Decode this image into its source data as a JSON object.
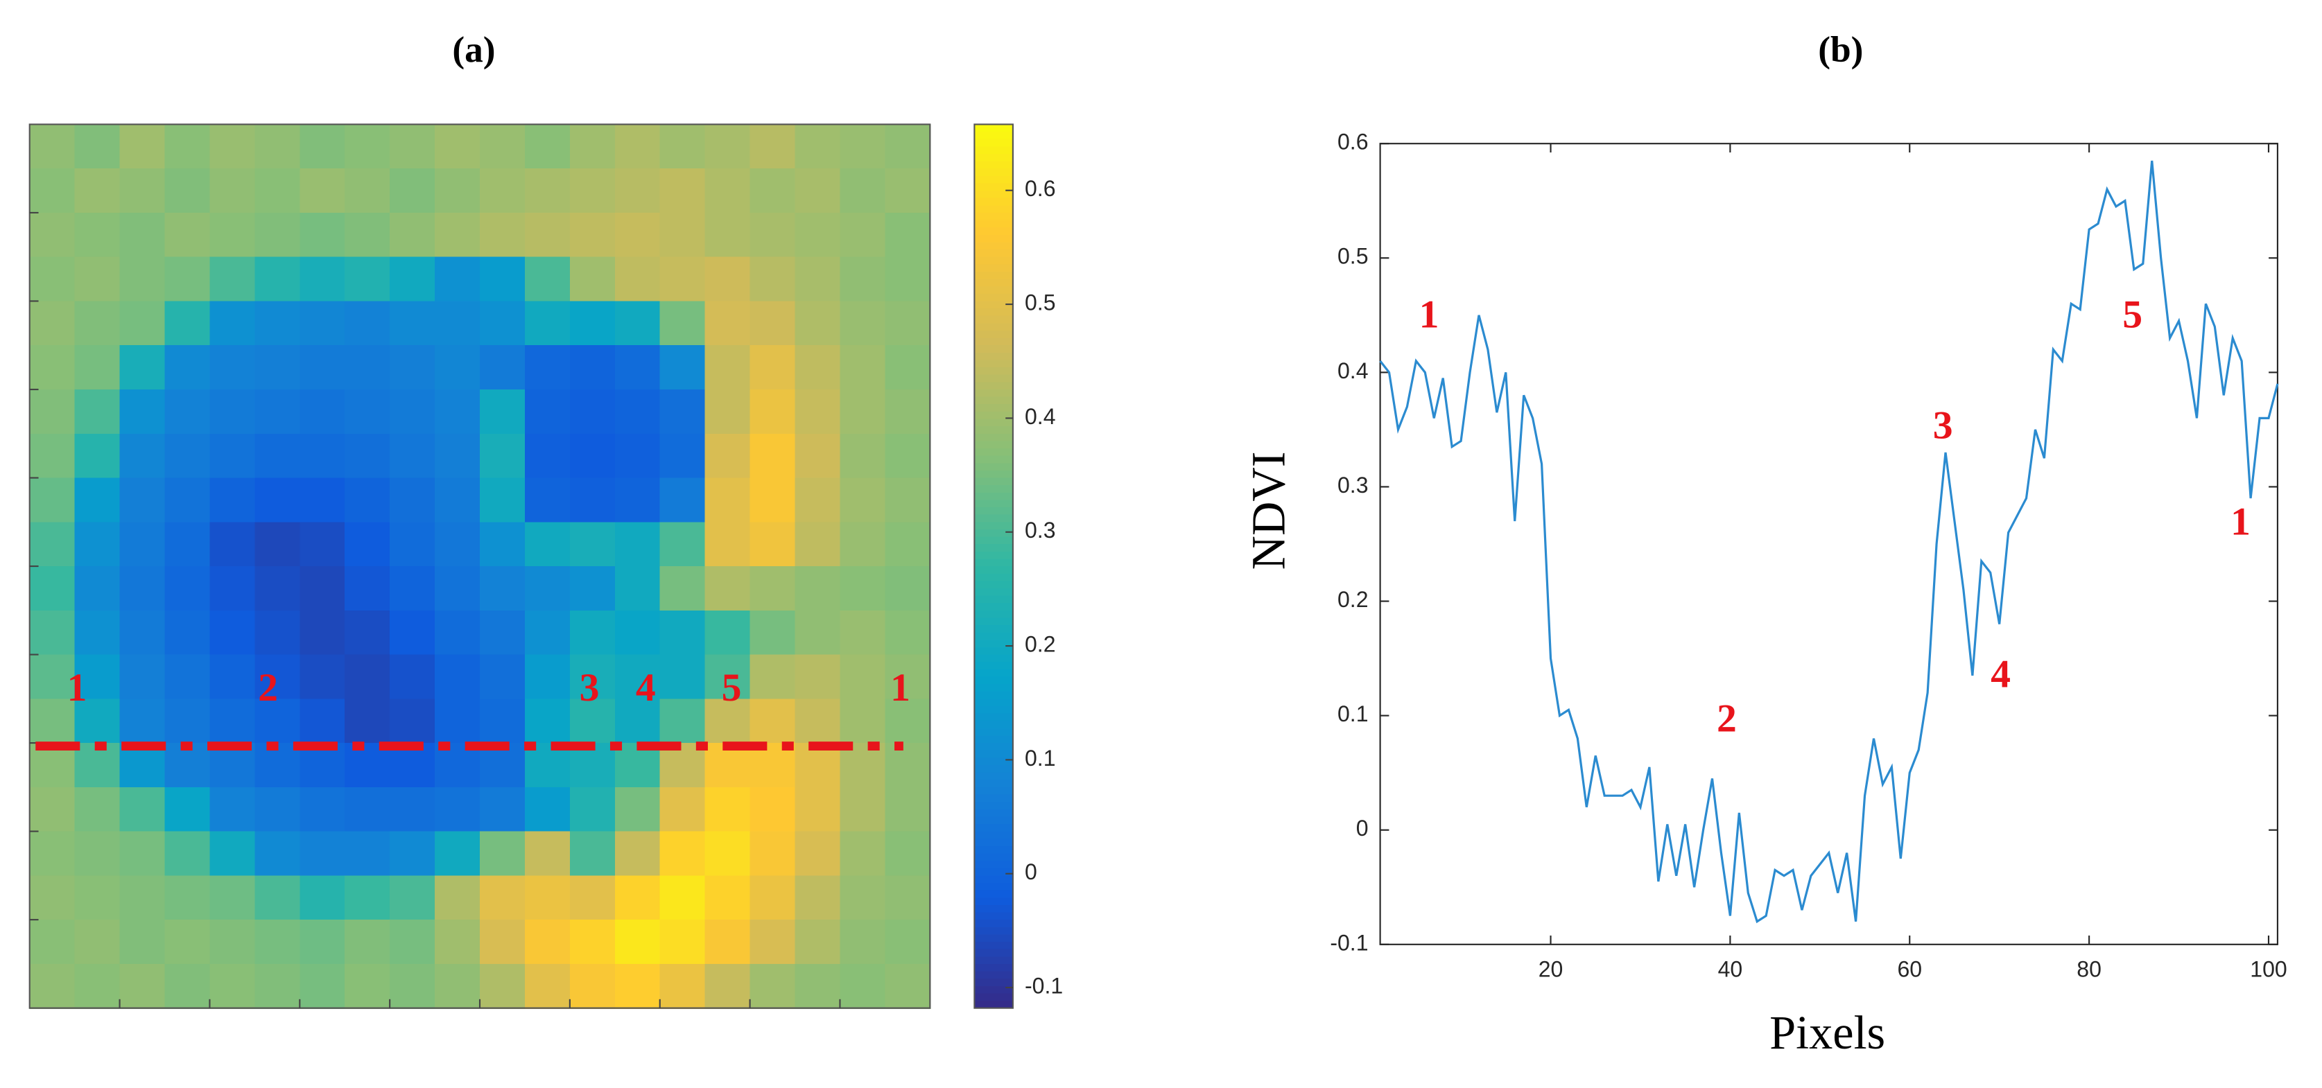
{
  "chart_data": [
    {
      "type": "heatmap",
      "title": "(a)",
      "colormap": "parula",
      "clim": [
        -0.118,
        0.658
      ],
      "cticks": [
        -0.1,
        0,
        0.1,
        0.2,
        0.3,
        0.4,
        0.5,
        0.6
      ],
      "annotations": [
        "1",
        "2",
        "3",
        "4",
        "5",
        "1"
      ],
      "z": [
        [
          0.38,
          0.36,
          0.4,
          0.37,
          0.39,
          0.38,
          0.36,
          0.37,
          0.38,
          0.4,
          0.39,
          0.37,
          0.4,
          0.42,
          0.4,
          0.41,
          0.43,
          0.4,
          0.39,
          0.38
        ],
        [
          0.37,
          0.39,
          0.38,
          0.36,
          0.38,
          0.37,
          0.39,
          0.38,
          0.36,
          0.38,
          0.4,
          0.41,
          0.42,
          0.43,
          0.44,
          0.42,
          0.4,
          0.41,
          0.38,
          0.39
        ],
        [
          0.38,
          0.37,
          0.36,
          0.38,
          0.37,
          0.36,
          0.35,
          0.36,
          0.38,
          0.4,
          0.42,
          0.43,
          0.44,
          0.45,
          0.44,
          0.42,
          0.41,
          0.4,
          0.39,
          0.37
        ],
        [
          0.37,
          0.38,
          0.36,
          0.35,
          0.3,
          0.25,
          0.22,
          0.24,
          0.2,
          0.12,
          0.15,
          0.3,
          0.4,
          0.44,
          0.45,
          0.46,
          0.43,
          0.41,
          0.38,
          0.37
        ],
        [
          0.38,
          0.36,
          0.35,
          0.25,
          0.12,
          0.1,
          0.09,
          0.08,
          0.1,
          0.1,
          0.12,
          0.2,
          0.18,
          0.2,
          0.35,
          0.47,
          0.46,
          0.42,
          0.39,
          0.38
        ],
        [
          0.37,
          0.35,
          0.22,
          0.1,
          0.08,
          0.07,
          0.06,
          0.06,
          0.07,
          0.09,
          0.06,
          0.01,
          0.0,
          0.02,
          0.1,
          0.45,
          0.5,
          0.44,
          0.4,
          0.37
        ],
        [
          0.36,
          0.3,
          0.12,
          0.08,
          0.06,
          0.05,
          0.04,
          0.05,
          0.06,
          0.08,
          0.2,
          0.0,
          -0.01,
          0.0,
          0.03,
          0.45,
          0.52,
          0.45,
          0.4,
          0.38
        ],
        [
          0.35,
          0.25,
          0.09,
          0.06,
          0.04,
          0.02,
          0.02,
          0.03,
          0.05,
          0.07,
          0.22,
          -0.01,
          -0.02,
          -0.01,
          0.02,
          0.48,
          0.55,
          0.46,
          0.39,
          0.37
        ],
        [
          0.33,
          0.15,
          0.07,
          0.04,
          0.0,
          -0.02,
          -0.02,
          0.0,
          0.03,
          0.06,
          0.2,
          0.0,
          -0.01,
          0.0,
          0.06,
          0.5,
          0.55,
          0.45,
          0.4,
          0.38
        ],
        [
          0.3,
          0.12,
          0.06,
          0.02,
          -0.04,
          -0.06,
          -0.05,
          -0.02,
          0.02,
          0.05,
          0.12,
          0.2,
          0.22,
          0.2,
          0.3,
          0.5,
          0.53,
          0.44,
          0.39,
          0.37
        ],
        [
          0.28,
          0.1,
          0.05,
          0.01,
          -0.03,
          -0.05,
          -0.06,
          -0.03,
          0.0,
          0.04,
          0.08,
          0.1,
          0.12,
          0.2,
          0.35,
          0.42,
          0.4,
          0.38,
          0.37,
          0.36
        ],
        [
          0.3,
          0.12,
          0.06,
          0.02,
          -0.02,
          -0.04,
          -0.06,
          -0.05,
          -0.02,
          0.02,
          0.05,
          0.12,
          0.2,
          0.18,
          0.2,
          0.28,
          0.35,
          0.38,
          0.39,
          0.37
        ],
        [
          0.32,
          0.15,
          0.07,
          0.04,
          0.0,
          -0.03,
          -0.05,
          -0.06,
          -0.04,
          0.0,
          0.03,
          0.15,
          0.22,
          0.2,
          0.2,
          0.3,
          0.42,
          0.43,
          0.4,
          0.38
        ],
        [
          0.35,
          0.2,
          0.08,
          0.05,
          0.02,
          0.0,
          -0.03,
          -0.06,
          -0.05,
          0.0,
          0.02,
          0.18,
          0.25,
          0.2,
          0.3,
          0.45,
          0.5,
          0.45,
          0.4,
          0.37
        ],
        [
          0.37,
          0.3,
          0.14,
          0.07,
          0.05,
          0.02,
          0.0,
          -0.02,
          -0.02,
          0.01,
          0.03,
          0.2,
          0.22,
          0.28,
          0.45,
          0.55,
          0.55,
          0.5,
          0.42,
          0.38
        ],
        [
          0.38,
          0.35,
          0.3,
          0.18,
          0.08,
          0.06,
          0.04,
          0.03,
          0.03,
          0.04,
          0.06,
          0.15,
          0.24,
          0.35,
          0.5,
          0.58,
          0.56,
          0.5,
          0.42,
          0.38
        ],
        [
          0.37,
          0.36,
          0.35,
          0.3,
          0.2,
          0.1,
          0.08,
          0.08,
          0.1,
          0.2,
          0.35,
          0.45,
          0.3,
          0.45,
          0.58,
          0.6,
          0.55,
          0.48,
          0.4,
          0.37
        ],
        [
          0.38,
          0.37,
          0.36,
          0.35,
          0.34,
          0.3,
          0.25,
          0.28,
          0.3,
          0.42,
          0.5,
          0.52,
          0.5,
          0.58,
          0.62,
          0.58,
          0.52,
          0.44,
          0.39,
          0.38
        ],
        [
          0.37,
          0.38,
          0.36,
          0.37,
          0.36,
          0.35,
          0.34,
          0.36,
          0.35,
          0.4,
          0.48,
          0.55,
          0.58,
          0.62,
          0.6,
          0.55,
          0.48,
          0.42,
          0.38,
          0.37
        ],
        [
          0.38,
          0.37,
          0.38,
          0.36,
          0.37,
          0.36,
          0.35,
          0.37,
          0.36,
          0.38,
          0.42,
          0.5,
          0.55,
          0.57,
          0.52,
          0.45,
          0.4,
          0.38,
          0.37,
          0.38
        ]
      ]
    },
    {
      "type": "line",
      "title": "(b)",
      "xlabel": "Pixels",
      "ylabel": "NDVI",
      "color": "#2b8bd0",
      "xlim": [
        1,
        101
      ],
      "ylim": [
        -0.1,
        0.6
      ],
      "xticks": [
        20,
        40,
        60,
        80,
        100
      ],
      "yticks": [
        -0.1,
        0,
        0.1,
        0.2,
        0.3,
        0.4,
        0.5,
        0.6
      ],
      "annotations": [
        "1",
        "5",
        "3",
        "1",
        "4",
        "2"
      ],
      "x": [
        1,
        2,
        3,
        4,
        5,
        6,
        7,
        8,
        9,
        10,
        11,
        12,
        13,
        14,
        15,
        16,
        17,
        18,
        19,
        20,
        21,
        22,
        23,
        24,
        25,
        26,
        27,
        28,
        29,
        30,
        31,
        32,
        33,
        34,
        35,
        36,
        37,
        38,
        39,
        40,
        41,
        42,
        43,
        44,
        45,
        46,
        47,
        48,
        49,
        50,
        51,
        52,
        53,
        54,
        55,
        56,
        57,
        58,
        59,
        60,
        61,
        62,
        63,
        64,
        65,
        66,
        67,
        68,
        69,
        70,
        71,
        72,
        73,
        74,
        75,
        76,
        77,
        78,
        79,
        80,
        81,
        82,
        83,
        84,
        85,
        86,
        87,
        88,
        89,
        90,
        91,
        92,
        93,
        94,
        95,
        96,
        97,
        98,
        99,
        100,
        101
      ],
      "values": [
        0.41,
        0.4,
        0.35,
        0.37,
        0.41,
        0.4,
        0.36,
        0.395,
        0.335,
        0.34,
        0.4,
        0.45,
        0.42,
        0.365,
        0.4,
        0.27,
        0.38,
        0.36,
        0.32,
        0.15,
        0.1,
        0.105,
        0.08,
        0.02,
        0.065,
        0.03,
        0.03,
        0.03,
        0.035,
        0.02,
        0.055,
        -0.045,
        0.005,
        -0.04,
        0.005,
        -0.05,
        0.0,
        0.045,
        -0.02,
        -0.075,
        0.015,
        -0.055,
        -0.08,
        -0.075,
        -0.035,
        -0.04,
        -0.035,
        -0.07,
        -0.04,
        -0.03,
        -0.02,
        -0.055,
        -0.02,
        -0.08,
        0.03,
        0.08,
        0.04,
        0.055,
        -0.025,
        0.05,
        0.07,
        0.12,
        0.25,
        0.33,
        0.27,
        0.21,
        0.135,
        0.235,
        0.225,
        0.18,
        0.26,
        0.275,
        0.29,
        0.35,
        0.325,
        0.42,
        0.41,
        0.46,
        0.455,
        0.525,
        0.53,
        0.56,
        0.545,
        0.55,
        0.49,
        0.495,
        0.585,
        0.5,
        0.43,
        0.445,
        0.41,
        0.36,
        0.46,
        0.44,
        0.38,
        0.43,
        0.41,
        0.29,
        0.36,
        0.36,
        0.39
      ]
    }
  ]
}
